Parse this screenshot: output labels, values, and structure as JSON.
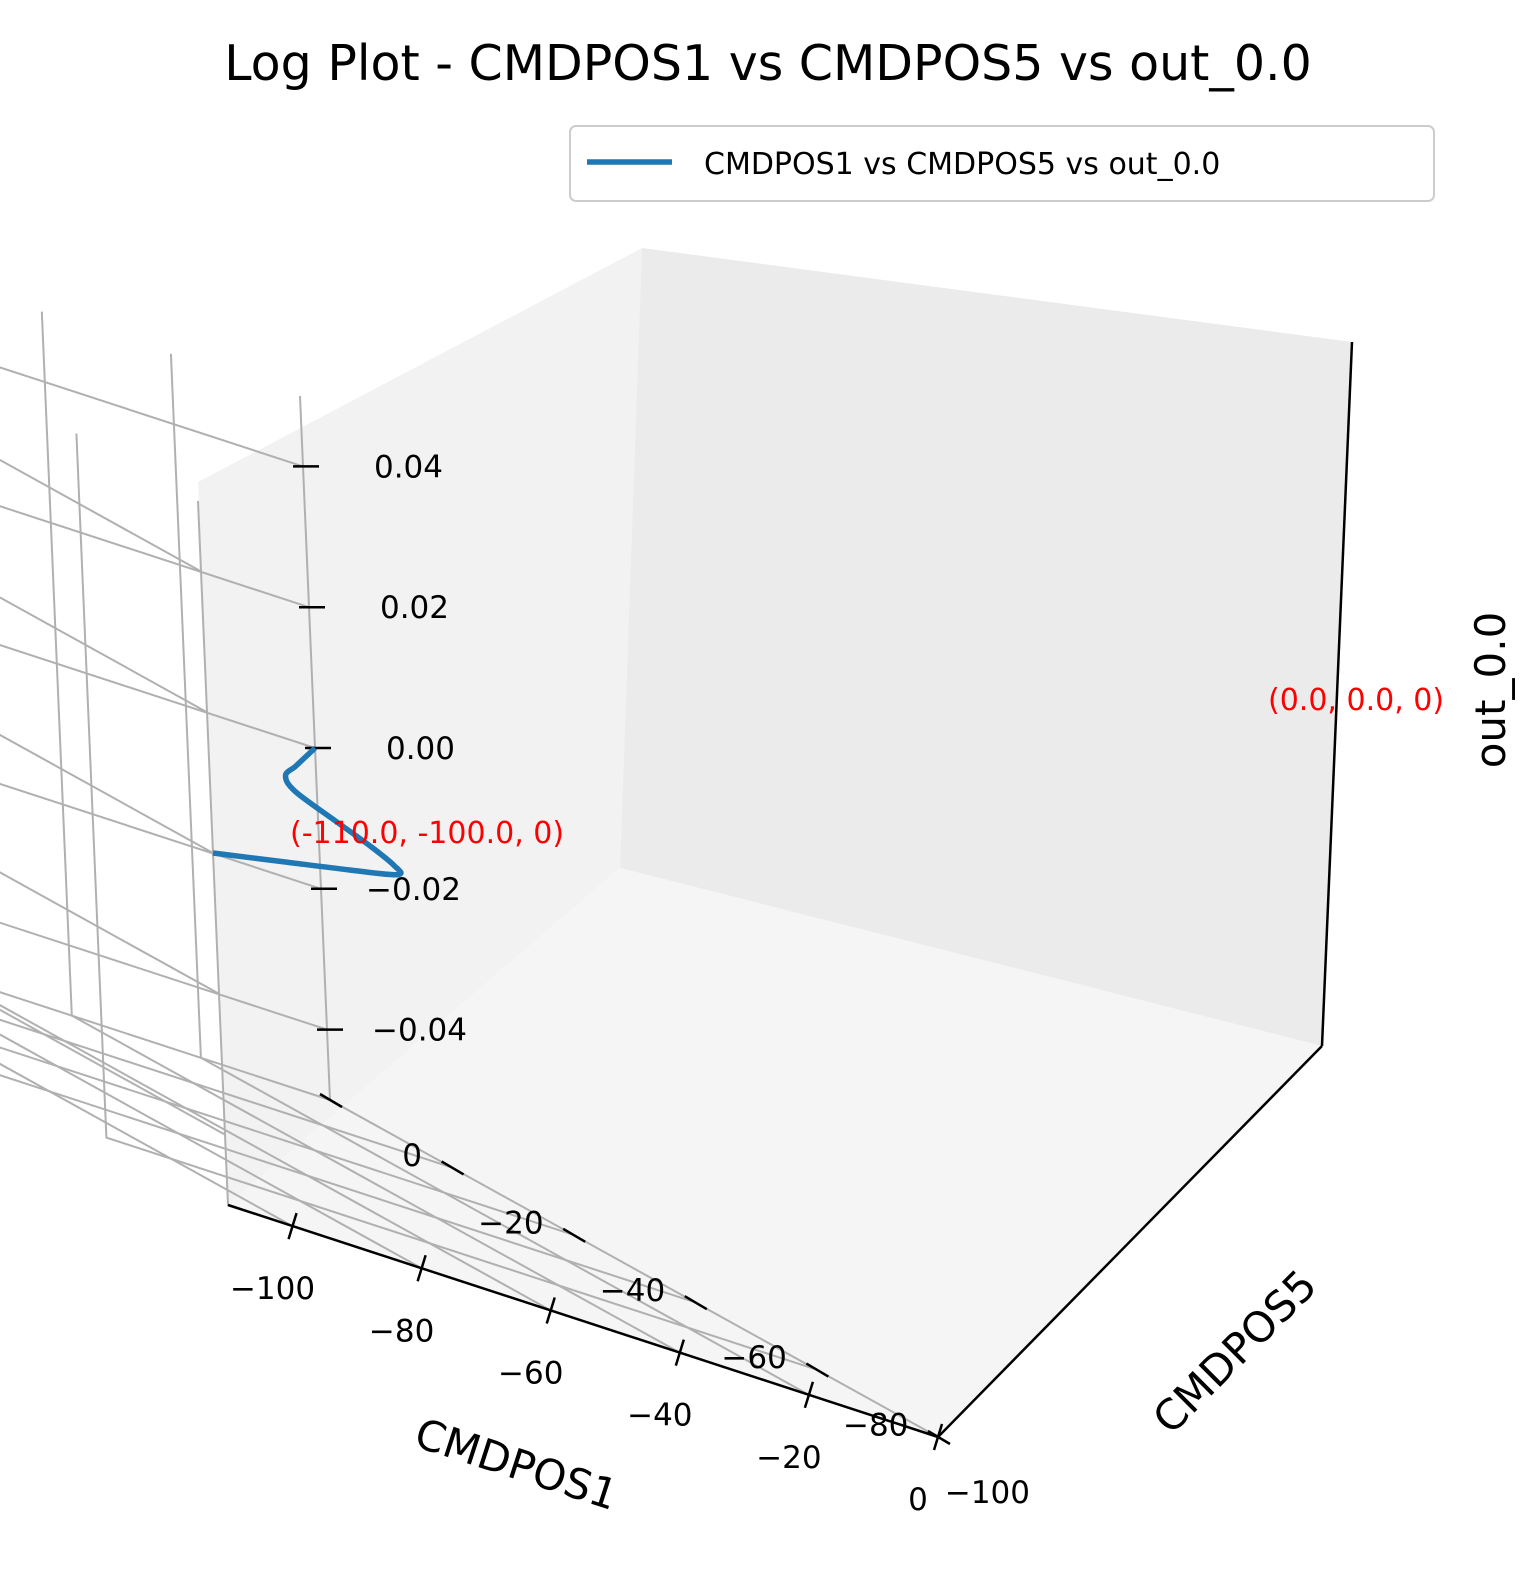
{
  "chart_data": {
    "type": "line",
    "title": "Log Plot - CMDPOS1 vs CMDPOS5 vs out_0.0",
    "xlabel": "CMDPOS1",
    "ylabel": "CMDPOS5",
    "zlabel": "out_0.0",
    "xlim": [
      -110,
      0
    ],
    "ylim": [
      -100,
      0
    ],
    "zlim": [
      -0.05,
      0.05
    ],
    "x_ticks": [
      "−100",
      "−80",
      "−60",
      "−40",
      "−20",
      "0"
    ],
    "y_ticks": [
      "0",
      "−20",
      "−40",
      "−60",
      "−80",
      "−100"
    ],
    "z_ticks": [
      "0.04",
      "0.02",
      "0.00",
      "−0.02",
      "−0.04"
    ],
    "grid": true,
    "legend_position": "top-right",
    "series": [
      {
        "name": "CMDPOS1 vs CMDPOS5 vs out_0.0",
        "color": "#1f77b4",
        "x": [
          -110,
          -90,
          -70,
          -55,
          -50,
          -46,
          -42,
          -37,
          -30,
          -20,
          -10,
          0
        ],
        "y": [
          -100,
          -90,
          -80,
          -72,
          -66,
          -58,
          -48,
          -36,
          -27,
          -18,
          -9,
          0
        ],
        "z": [
          0,
          0,
          0,
          0,
          0,
          0,
          0,
          0,
          0,
          0,
          0,
          0
        ]
      }
    ],
    "annotations": [
      {
        "text": "(-110.0, -100.0, 0)",
        "color": "#ff0000"
      },
      {
        "text": "(0.0, 0.0, 0)",
        "color": "#ff0000"
      }
    ]
  }
}
